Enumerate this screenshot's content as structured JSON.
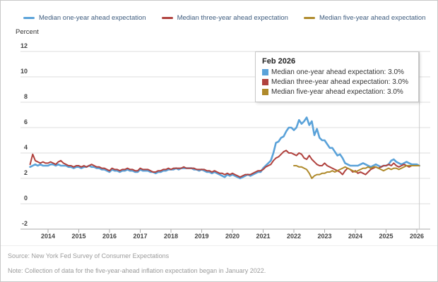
{
  "legend": {
    "items": [
      {
        "label": "Median one-year ahead expectation",
        "color": "#5aa2d9"
      },
      {
        "label": "Median three-year ahead expectation",
        "color": "#b0413d"
      },
      {
        "label": "Median five-year ahead expectation",
        "color": "#af8a2b"
      }
    ]
  },
  "axis": {
    "unit_label": "Percent",
    "y_ticks": [
      12,
      10,
      8,
      6,
      4,
      2,
      0,
      -2
    ],
    "x_ticks": [
      2014,
      2015,
      2016,
      2017,
      2018,
      2019,
      2020,
      2021,
      2022,
      2023,
      2024,
      2025,
      2026
    ]
  },
  "tooltip": {
    "title": "Feb 2026",
    "items": [
      {
        "label": "Median one-year ahead expectation: 3.0%",
        "color": "#5aa2d9"
      },
      {
        "label": "Median three-year ahead expectation: 3.0%",
        "color": "#b0413d"
      },
      {
        "label": "Median five-year ahead expectation: 3.0%",
        "color": "#af8a2b"
      }
    ]
  },
  "footer": {
    "source": "Source: New York Fed Survey of Consumer Expectations",
    "note": "Note: Collection of data for the five-year-ahead inflation expectation began in January 2022."
  },
  "chart_data": {
    "type": "line",
    "title": "",
    "ylabel": "Percent",
    "ylim": [
      -2,
      12
    ],
    "y_step": 2,
    "grid": "horizontal",
    "legend_position": "top",
    "x_unit": "month",
    "x_range": [
      "2013-06",
      "2026-02"
    ],
    "hover_point": {
      "x": "Feb 2026",
      "values": [
        3.0,
        3.0,
        3.0
      ]
    },
    "series": [
      {
        "name": "Median one-year ahead expectation",
        "color": "#5aa2d9",
        "start": "2013-06",
        "values": [
          2.9,
          3.0,
          3.1,
          3.0,
          3.1,
          3.0,
          3.0,
          3.0,
          3.1,
          3.1,
          3.0,
          3.1,
          3.0,
          3.0,
          3.0,
          2.9,
          2.9,
          2.8,
          2.9,
          2.9,
          2.8,
          2.9,
          2.9,
          3.0,
          2.9,
          2.9,
          2.8,
          2.8,
          2.7,
          2.7,
          2.6,
          2.5,
          2.7,
          2.6,
          2.6,
          2.5,
          2.6,
          2.6,
          2.7,
          2.6,
          2.6,
          2.5,
          2.5,
          2.7,
          2.6,
          2.6,
          2.6,
          2.5,
          2.5,
          2.4,
          2.5,
          2.5,
          2.6,
          2.6,
          2.7,
          2.7,
          2.7,
          2.8,
          2.7,
          2.8,
          2.8,
          2.8,
          2.8,
          2.8,
          2.7,
          2.7,
          2.6,
          2.7,
          2.6,
          2.5,
          2.5,
          2.4,
          2.5,
          2.4,
          2.3,
          2.2,
          2.1,
          2.3,
          2.2,
          2.3,
          2.2,
          2.1,
          2.0,
          2.1,
          2.2,
          2.3,
          2.2,
          2.3,
          2.4,
          2.5,
          2.5,
          2.8,
          3.0,
          3.2,
          3.4,
          4.0,
          4.8,
          4.9,
          5.2,
          5.3,
          5.7,
          6.0,
          6.0,
          5.8,
          6.0,
          6.6,
          6.3,
          6.5,
          6.8,
          6.2,
          6.5,
          5.4,
          5.9,
          5.2,
          5.0,
          5.0,
          4.7,
          4.4,
          4.4,
          4.1,
          3.8,
          3.9,
          3.6,
          3.2,
          3.1,
          3.0,
          3.0,
          3.0,
          3.0,
          3.1,
          3.2,
          3.1,
          3.0,
          2.9,
          3.0,
          3.1,
          3.0,
          2.9,
          3.0,
          3.0,
          3.1,
          3.4,
          3.5,
          3.3,
          3.2,
          3.1,
          3.2,
          3.3,
          3.2,
          3.1,
          3.1,
          3.1,
          3.0
        ]
      },
      {
        "name": "Median three-year ahead expectation",
        "color": "#b0413d",
        "start": "2013-06",
        "values": [
          3.1,
          3.9,
          3.4,
          3.3,
          3.2,
          3.3,
          3.2,
          3.2,
          3.3,
          3.2,
          3.1,
          3.3,
          3.4,
          3.2,
          3.1,
          3.0,
          3.0,
          2.9,
          3.0,
          3.0,
          2.9,
          3.0,
          2.9,
          3.0,
          3.1,
          3.0,
          2.9,
          2.9,
          2.8,
          2.8,
          2.7,
          2.6,
          2.8,
          2.7,
          2.7,
          2.6,
          2.7,
          2.7,
          2.8,
          2.7,
          2.7,
          2.6,
          2.6,
          2.8,
          2.7,
          2.7,
          2.7,
          2.6,
          2.5,
          2.5,
          2.6,
          2.6,
          2.7,
          2.7,
          2.8,
          2.7,
          2.8,
          2.8,
          2.8,
          2.8,
          2.9,
          2.8,
          2.8,
          2.8,
          2.8,
          2.7,
          2.7,
          2.7,
          2.7,
          2.6,
          2.6,
          2.5,
          2.6,
          2.5,
          2.4,
          2.4,
          2.3,
          2.4,
          2.3,
          2.4,
          2.3,
          2.2,
          2.1,
          2.2,
          2.3,
          2.3,
          2.3,
          2.4,
          2.5,
          2.6,
          2.6,
          2.7,
          2.9,
          3.0,
          3.1,
          3.4,
          3.6,
          3.7,
          3.9,
          4.1,
          4.2,
          4.0,
          4.0,
          3.9,
          3.8,
          4.0,
          3.9,
          3.6,
          3.5,
          3.8,
          3.5,
          3.3,
          3.1,
          3.0,
          3.0,
          3.2,
          3.0,
          2.9,
          2.8,
          2.7,
          2.6,
          2.5,
          2.3,
          2.6,
          2.8,
          2.7,
          2.5,
          2.6,
          2.4,
          2.5,
          2.4,
          2.3,
          2.5,
          2.7,
          2.8,
          2.9,
          2.8,
          2.9,
          3.0,
          3.0,
          3.1,
          3.0,
          3.2,
          3.0,
          2.9,
          3.0,
          3.1,
          3.0,
          2.9,
          3.0,
          3.0,
          3.0,
          3.0
        ]
      },
      {
        "name": "Median five-year ahead expectation",
        "color": "#af8a2b",
        "start": "2022-01",
        "values": [
          3.0,
          3.0,
          2.9,
          2.9,
          2.8,
          2.7,
          2.4,
          2.0,
          2.2,
          2.3,
          2.3,
          2.4,
          2.4,
          2.5,
          2.5,
          2.6,
          2.5,
          2.6,
          2.7,
          2.8,
          2.9,
          2.8,
          2.7,
          2.6,
          2.5,
          2.6,
          2.7,
          2.8,
          2.8,
          2.9,
          2.8,
          2.9,
          2.9,
          2.8,
          2.7,
          2.6,
          2.7,
          2.8,
          2.7,
          2.8,
          2.8,
          2.7,
          2.8,
          2.9,
          3.0,
          3.0,
          3.0,
          3.0,
          3.0,
          3.0
        ]
      }
    ]
  }
}
